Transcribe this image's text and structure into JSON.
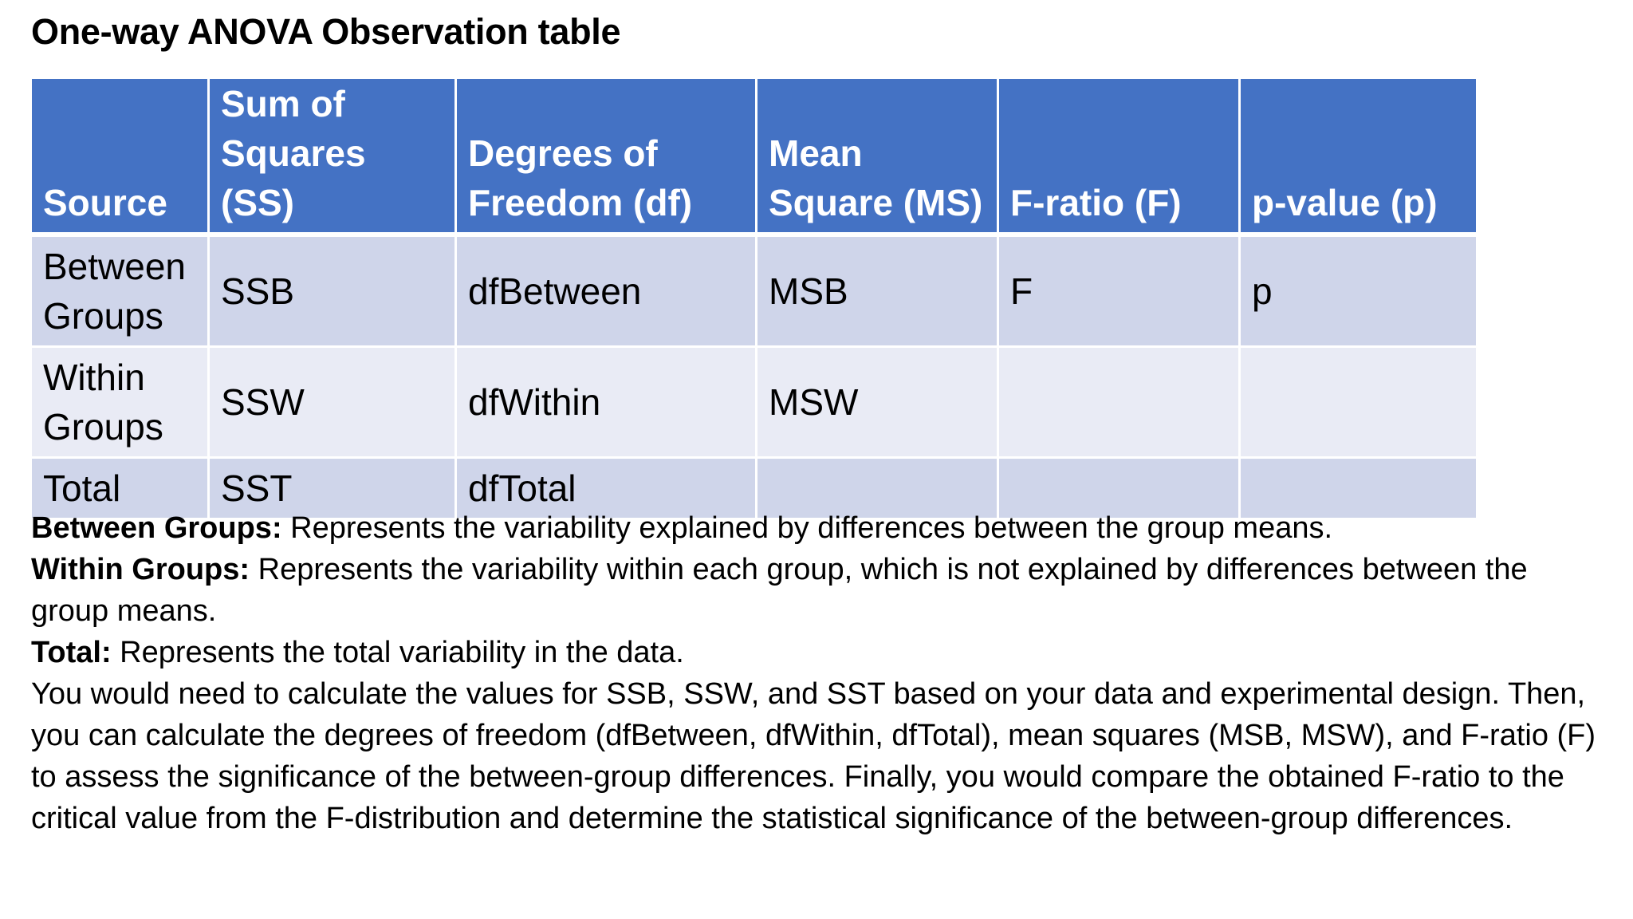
{
  "title": "One-way ANOVA Observation table",
  "table": {
    "headers": [
      {
        "line1": "",
        "line2": "Source"
      },
      {
        "line1": "Sum of",
        "line2": "Squares (SS)"
      },
      {
        "line1": "Degrees of",
        "line2": "Freedom (df)"
      },
      {
        "line1": "Mean",
        "line2": "Square (MS)"
      },
      {
        "line1": "",
        "line2": "F-ratio (F)"
      },
      {
        "line1": "",
        "line2": "p-value (p)"
      }
    ],
    "rows": [
      {
        "source1": "Between",
        "source2": "Groups",
        "ss": "SSB",
        "df": "dfBetween",
        "ms": "MSB",
        "f": "F",
        "p": "p"
      },
      {
        "source1": "Within",
        "source2": "Groups",
        "ss": "SSW",
        "df": "dfWithin",
        "ms": "MSW",
        "f": "",
        "p": ""
      },
      {
        "source1": "Total",
        "source2": "",
        "ss": "SST",
        "df": "dfTotal",
        "ms": "",
        "f": "",
        "p": ""
      }
    ]
  },
  "descriptions": [
    {
      "term": "Between Groups:",
      "text": " Represents the variability explained by differences between the group means."
    },
    {
      "term": "Within Groups:",
      "text": " Represents the variability within each group, which is not explained by differences between the group means."
    },
    {
      "term": "Total:",
      "text": " Represents the total variability in the data."
    }
  ],
  "paragraph": "You would need to calculate the values for SSB, SSW, and SST based on your data and experimental design. Then, you can calculate the degrees of freedom (dfBetween, dfWithin, dfTotal), mean squares (MSB, MSW), and F-ratio (F) to assess the significance of the between-group differences. Finally, you would compare the obtained F-ratio to the critical value from the F-distribution and determine the statistical significance of the between-group differences.",
  "colors": {
    "header_bg": "#4472c4",
    "row_odd_bg": "#cfd5ea",
    "row_even_bg": "#e9ebf5"
  }
}
